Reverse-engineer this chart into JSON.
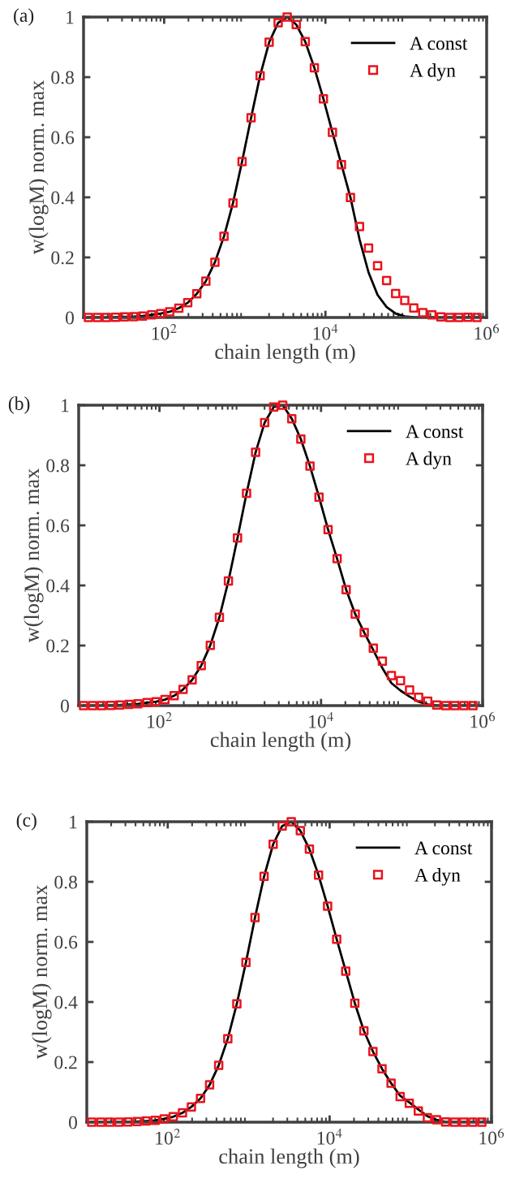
{
  "chart_data": [
    {
      "type": "line",
      "title": "(a)",
      "xlabel": "chain length (m)",
      "ylabel": "w(logM) norm. max",
      "log": "x",
      "legend": "top right",
      "grid": false,
      "x": [
        11.5,
        14.9,
        19.2,
        24.9,
        32.2,
        41.8,
        54.0,
        70.0,
        90.6,
        117,
        152,
        196,
        254,
        329,
        426,
        552,
        714,
        925,
        1197,
        1549,
        2005,
        2594,
        3357,
        4345,
        5623,
        7295,
        9441,
        12220,
        15810,
        20460,
        26490,
        34280,
        44360,
        57410,
        74300,
        96390,
        124700,
        161400,
        208900,
        270400,
        349900,
        452900,
        586100,
        758600
      ],
      "xlim": [
        10,
        1000000
      ],
      "xticks": [
        {
          "value": 100,
          "label": "10$^{2}$"
        },
        {
          "value": 10000,
          "label": "10$^{4}$"
        },
        {
          "value": 1000000,
          "label": "10$^{6}$"
        }
      ],
      "ylim": [
        0,
        1
      ],
      "yticks": [
        0,
        0.2,
        0.4,
        0.6,
        0.8,
        1
      ],
      "series": [
        {
          "name": "A const",
          "color": "#000000",
          "marker": "none",
          "line_style": "solid",
          "values": [
            0,
            0,
            0,
            0.001,
            0.002,
            0.003,
            0.005,
            0.009,
            0.013,
            0.019,
            0.031,
            0.049,
            0.079,
            0.121,
            0.184,
            0.27,
            0.381,
            0.519,
            0.665,
            0.805,
            0.916,
            0.981,
            1.0,
            0.975,
            0.918,
            0.831,
            0.728,
            0.616,
            0.509,
            0.399,
            0.26,
            0.15,
            0.075,
            0.035,
            0.013,
            0.004,
            0.001,
            0,
            0,
            0,
            0,
            0,
            0,
            0
          ]
        },
        {
          "name": "A dyn",
          "type": "scatter",
          "color": "#e8141c",
          "marker": "square",
          "values": [
            0,
            0,
            0,
            0.001,
            0.002,
            0.003,
            0.005,
            0.009,
            0.013,
            0.019,
            0.031,
            0.049,
            0.079,
            0.121,
            0.184,
            0.27,
            0.381,
            0.519,
            0.665,
            0.805,
            0.916,
            0.981,
            1.0,
            0.975,
            0.918,
            0.831,
            0.728,
            0.616,
            0.509,
            0.399,
            0.303,
            0.231,
            0.172,
            0.123,
            0.08,
            0.057,
            0.032,
            0.016,
            0.009,
            0.002,
            0,
            0,
            0.001,
            0
          ]
        }
      ]
    },
    {
      "type": "line",
      "title": "(b)",
      "xlabel": "chain length (m)",
      "ylabel": "w(logM) norm. max",
      "log": "x",
      "legend": "top right",
      "grid": false,
      "x": [
        11.5,
        14.9,
        19.2,
        24.9,
        32.2,
        41.8,
        54.0,
        70.0,
        90.6,
        117,
        152,
        196,
        254,
        329,
        426,
        552,
        714,
        925,
        1197,
        1549,
        2005,
        2594,
        3357,
        4345,
        5623,
        7295,
        9441,
        12220,
        15810,
        20460,
        26490,
        34280,
        44360,
        57410,
        74300,
        96390,
        124700,
        161400,
        208900,
        270400,
        349900,
        452900,
        586100,
        758600
      ],
      "xlim": [
        10,
        1000000
      ],
      "xticks": [
        {
          "value": 100,
          "label": "10$^{2}$"
        },
        {
          "value": 10000,
          "label": "10$^{4}$"
        },
        {
          "value": 1000000,
          "label": "10$^{6}$"
        }
      ],
      "ylim": [
        0,
        1
      ],
      "yticks": [
        0,
        0.2,
        0.4,
        0.6,
        0.8,
        1
      ],
      "series": [
        {
          "name": "A const",
          "color": "#000000",
          "marker": "none",
          "line_style": "solid",
          "values": [
            0,
            0,
            0,
            0.001,
            0.002,
            0.004,
            0.006,
            0.01,
            0.013,
            0.02,
            0.033,
            0.054,
            0.086,
            0.133,
            0.201,
            0.294,
            0.415,
            0.558,
            0.707,
            0.843,
            0.942,
            0.994,
            1.0,
            0.955,
            0.887,
            0.797,
            0.694,
            0.586,
            0.489,
            0.386,
            0.305,
            0.243,
            0.185,
            0.125,
            0.075,
            0.05,
            0.03,
            0.013,
            0.004,
            0.001,
            0,
            0,
            0,
            0
          ]
        },
        {
          "name": "A dyn",
          "type": "scatter",
          "color": "#e8141c",
          "marker": "square",
          "values": [
            0,
            0,
            0,
            0.001,
            0.002,
            0.004,
            0.006,
            0.01,
            0.013,
            0.02,
            0.033,
            0.054,
            0.086,
            0.133,
            0.201,
            0.294,
            0.415,
            0.558,
            0.707,
            0.843,
            0.942,
            0.994,
            1.0,
            0.955,
            0.887,
            0.797,
            0.694,
            0.586,
            0.489,
            0.386,
            0.305,
            0.243,
            0.191,
            0.148,
            0.1,
            0.083,
            0.052,
            0.028,
            0.015,
            0.002,
            0,
            0,
            0,
            0
          ]
        }
      ]
    },
    {
      "type": "line",
      "title": "(c)",
      "xlabel": "chain length (m)",
      "ylabel": "w(logM) norm. max",
      "log": "x",
      "legend": "top right",
      "grid": false,
      "x": [
        11.5,
        14.9,
        19.2,
        24.9,
        32.2,
        41.8,
        54.0,
        70.0,
        90.6,
        117,
        152,
        196,
        254,
        329,
        426,
        552,
        714,
        925,
        1197,
        1549,
        2005,
        2594,
        3357,
        4345,
        5623,
        7295,
        9441,
        12220,
        15810,
        20460,
        26490,
        34280,
        44360,
        57410,
        74300,
        96390,
        124700,
        161400,
        208900,
        270400,
        349900,
        452900,
        586100,
        758600
      ],
      "xlim": [
        10,
        1000000
      ],
      "xticks": [
        {
          "value": 100,
          "label": "10$^{2}$"
        },
        {
          "value": 10000,
          "label": "10$^{4}$"
        },
        {
          "value": 1000000,
          "label": "10$^{6}$"
        }
      ],
      "ylim": [
        0,
        1
      ],
      "yticks": [
        0,
        0.2,
        0.4,
        0.6,
        0.8,
        1
      ],
      "series": [
        {
          "name": "A const",
          "color": "#000000",
          "marker": "none",
          "line_style": "solid",
          "values": [
            0,
            0,
            0,
            0,
            0.001,
            0.002,
            0.004,
            0.006,
            0.011,
            0.018,
            0.031,
            0.051,
            0.079,
            0.124,
            0.189,
            0.278,
            0.394,
            0.532,
            0.681,
            0.818,
            0.925,
            0.986,
            1.0,
            0.97,
            0.909,
            0.822,
            0.719,
            0.609,
            0.503,
            0.396,
            0.304,
            0.235,
            0.178,
            0.13,
            0.088,
            0.066,
            0.042,
            0.02,
            0.008,
            0.001,
            0,
            0,
            0,
            0
          ]
        },
        {
          "name": "A dyn",
          "type": "scatter",
          "color": "#e8141c",
          "marker": "square",
          "values": [
            0,
            0,
            0,
            0,
            0.001,
            0.002,
            0.004,
            0.006,
            0.011,
            0.018,
            0.031,
            0.051,
            0.079,
            0.124,
            0.189,
            0.278,
            0.394,
            0.532,
            0.681,
            0.818,
            0.925,
            0.986,
            1.0,
            0.97,
            0.909,
            0.822,
            0.719,
            0.609,
            0.503,
            0.396,
            0.304,
            0.235,
            0.178,
            0.13,
            0.085,
            0.063,
            0.037,
            0.015,
            0.008,
            0.001,
            0,
            0,
            0,
            0
          ]
        }
      ]
    }
  ]
}
